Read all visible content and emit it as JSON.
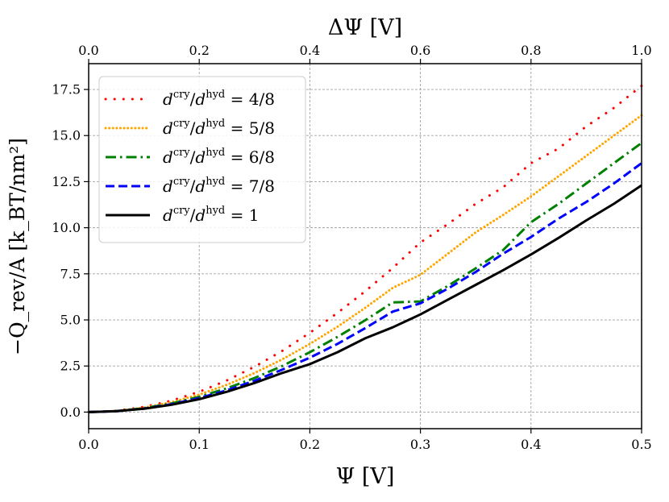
{
  "chart_data": {
    "type": "line",
    "title": "",
    "xlabel": "Ψ [V]",
    "xlabel_top": "ΔΨ [V]",
    "ylabel": "−Q_rev/A [k_BT/nm²]",
    "xlim": [
      0.0,
      0.5
    ],
    "xlim_top": [
      0.0,
      1.0
    ],
    "ylim": [
      -0.9,
      18.9
    ],
    "grid": true,
    "legend_position": "top-left",
    "x_ticks": [
      "0.0",
      "0.1",
      "0.2",
      "0.3",
      "0.4",
      "0.5"
    ],
    "x_top_ticks": [
      "0.0",
      "0.2",
      "0.4",
      "0.6",
      "0.8",
      "1.0"
    ],
    "y_ticks": [
      "0.0",
      "2.5",
      "5.0",
      "7.5",
      "10.0",
      "12.5",
      "15.0",
      "17.5"
    ],
    "x": [
      0,
      0.025,
      0.05,
      0.075,
      0.1,
      0.125,
      0.15,
      0.175,
      0.2,
      0.225,
      0.25,
      0.275,
      0.3,
      0.325,
      0.35,
      0.375,
      0.4,
      0.425,
      0.45,
      0.475,
      0.5
    ],
    "series": [
      {
        "name": "d^cry/d^hyd = 4/8",
        "legend_ratio": "4/8",
        "color": "#ff0000",
        "style": "dotted",
        "values": [
          0.0,
          0.07,
          0.28,
          0.62,
          1.1,
          1.72,
          2.46,
          3.32,
          4.3,
          5.38,
          6.55,
          7.82,
          9.2,
          10.2,
          11.3,
          12.2,
          13.5,
          14.3,
          15.5,
          16.5,
          17.7
        ]
      },
      {
        "name": "d^cry/d^hyd = 5/8",
        "legend_ratio": "5/8",
        "color": "#ffa500",
        "style": "dotted-dense",
        "values": [
          0.0,
          0.06,
          0.24,
          0.54,
          0.95,
          1.48,
          2.12,
          2.86,
          3.7,
          4.63,
          5.65,
          6.74,
          7.45,
          8.6,
          9.75,
          10.7,
          11.7,
          12.8,
          13.9,
          15.0,
          16.1
        ]
      },
      {
        "name": "d^cry/d^hyd = 6/8",
        "legend_ratio": "6/8",
        "color": "#008000",
        "style": "dashdot",
        "values": [
          0.0,
          0.05,
          0.21,
          0.47,
          0.83,
          1.29,
          1.85,
          2.5,
          3.25,
          4.08,
          4.98,
          5.95,
          6.0,
          6.85,
          7.8,
          8.8,
          10.3,
          11.3,
          12.4,
          13.5,
          14.6
        ]
      },
      {
        "name": "d^cry/d^hyd = 7/8",
        "legend_ratio": "7/8",
        "color": "#0000ff",
        "style": "dashed",
        "values": [
          0.0,
          0.05,
          0.19,
          0.43,
          0.76,
          1.18,
          1.7,
          2.3,
          2.95,
          3.7,
          4.55,
          5.45,
          5.9,
          6.7,
          7.6,
          8.6,
          9.5,
          10.5,
          11.4,
          12.4,
          13.5
        ]
      },
      {
        "name": "d^cry/d^hyd = 1",
        "legend_ratio": "1",
        "color": "#000000",
        "style": "solid",
        "values": [
          0.0,
          0.05,
          0.18,
          0.4,
          0.7,
          1.1,
          1.58,
          2.12,
          2.6,
          3.25,
          4.0,
          4.6,
          5.3,
          6.1,
          6.9,
          7.7,
          8.55,
          9.45,
          10.4,
          11.3,
          12.3
        ]
      }
    ]
  }
}
